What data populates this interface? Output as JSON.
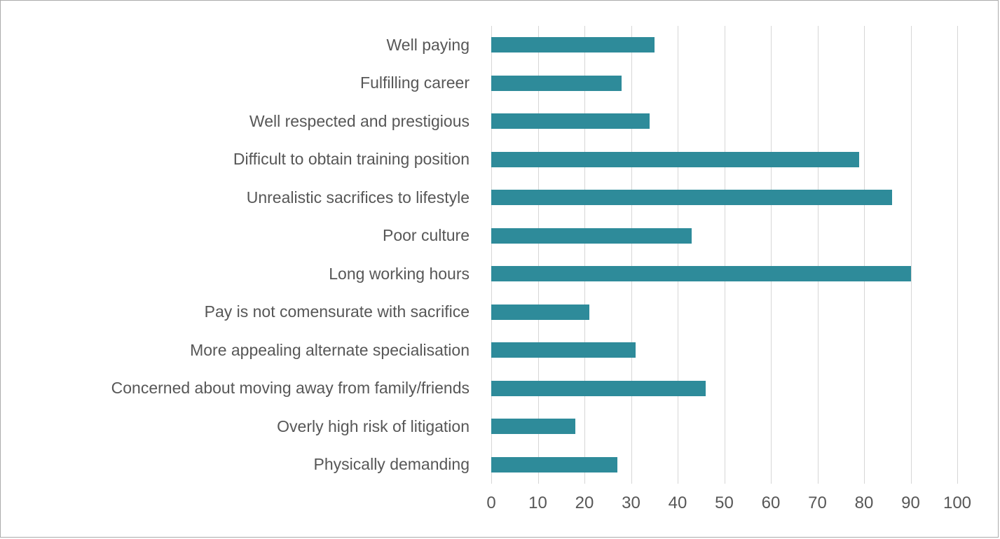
{
  "chart_data": {
    "type": "bar",
    "orientation": "horizontal",
    "title": "",
    "xlabel": "",
    "ylabel": "",
    "xlim": [
      0,
      100
    ],
    "xticks": [
      0,
      10,
      20,
      30,
      40,
      50,
      60,
      70,
      80,
      90,
      100
    ],
    "grid": "vertical",
    "legend": "none",
    "categories": [
      "Well paying",
      "Fulfilling career",
      "Well respected and prestigious",
      "Difficult to obtain training position",
      "Unrealistic sacrifices to lifestyle",
      "Poor culture",
      "Long working hours",
      "Pay is not comensurate with sacrifice",
      "More appealing alternate specialisation",
      "Concerned about moving away from family/friends",
      "Overly high risk of litigation",
      "Physically demanding"
    ],
    "values": [
      35,
      28,
      34,
      79,
      86,
      43,
      90,
      21,
      31,
      46,
      18,
      27
    ],
    "colors": {
      "bar": "#2e8b9a",
      "gridline": "#d6d6d6",
      "text": "#575757",
      "frame_border": "#ababab",
      "background": "#ffffff"
    }
  }
}
